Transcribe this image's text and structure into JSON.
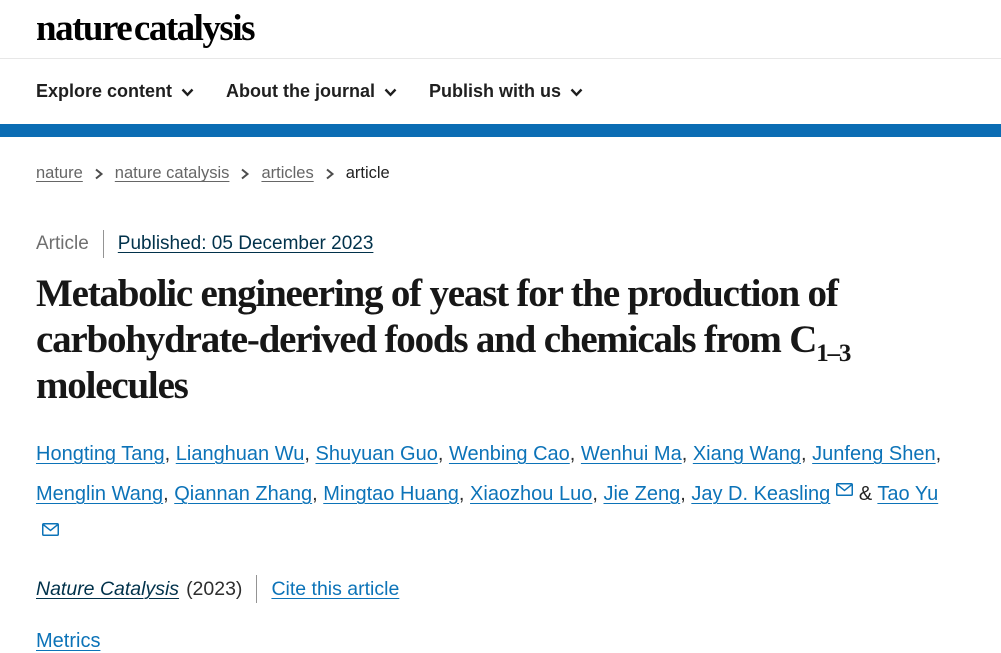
{
  "brand": {
    "logo": "nature catalysis"
  },
  "nav": {
    "items": [
      {
        "label": "Explore content"
      },
      {
        "label": "About the journal"
      },
      {
        "label": "Publish with us"
      }
    ]
  },
  "breadcrumb": {
    "items": [
      {
        "label": "nature",
        "link": true
      },
      {
        "label": "nature catalysis",
        "link": true
      },
      {
        "label": "articles",
        "link": true
      },
      {
        "label": "article",
        "link": false
      }
    ]
  },
  "article": {
    "type_label": "Article",
    "published": "Published: 05 December 2023",
    "title": {
      "part1": "Metabolic engineering of yeast for the production of carbohydrate-derived foods and chemicals from C",
      "subscript": "1–3",
      "part2": " molecules"
    },
    "authors": {
      "separator": ", ",
      "last_separator": " & ",
      "list": [
        {
          "name": "Hongting Tang",
          "email": false
        },
        {
          "name": "Lianghuan Wu",
          "email": false
        },
        {
          "name": "Shuyuan Guo",
          "email": false
        },
        {
          "name": "Wenbing Cao",
          "email": false
        },
        {
          "name": "Wenhui Ma",
          "email": false
        },
        {
          "name": "Xiang Wang",
          "email": false
        },
        {
          "name": "Junfeng Shen",
          "email": false
        },
        {
          "name": "Menglin Wang",
          "email": false
        },
        {
          "name": "Qiannan Zhang",
          "email": false
        },
        {
          "name": "Mingtao Huang",
          "email": false
        },
        {
          "name": "Xiaozhou Luo",
          "email": false
        },
        {
          "name": "Jie Zeng",
          "email": false
        },
        {
          "name": "Jay D. Keasling",
          "email": true
        },
        {
          "name": "Tao Yu",
          "email": true
        }
      ]
    },
    "journal": {
      "name": "Nature Catalysis",
      "year": "(2023)",
      "cite_label": "Cite this article"
    },
    "metrics_label": "Metrics"
  },
  "colors": {
    "accent_bar": "#0b6db4",
    "link_blue": "#0c73b8",
    "link_dark": "#01324b"
  }
}
